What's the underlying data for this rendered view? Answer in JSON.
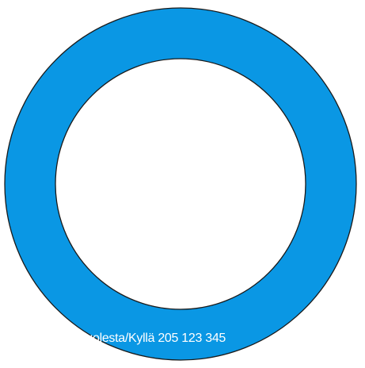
{
  "chart_data": {
    "type": "pie",
    "donut": true,
    "slices": [
      {
        "label": "Puolesta/Kyllä",
        "value": 205123345,
        "value_text": "205 123 345",
        "color": "#0a97e4"
      }
    ],
    "legend": "none",
    "title": ""
  }
}
